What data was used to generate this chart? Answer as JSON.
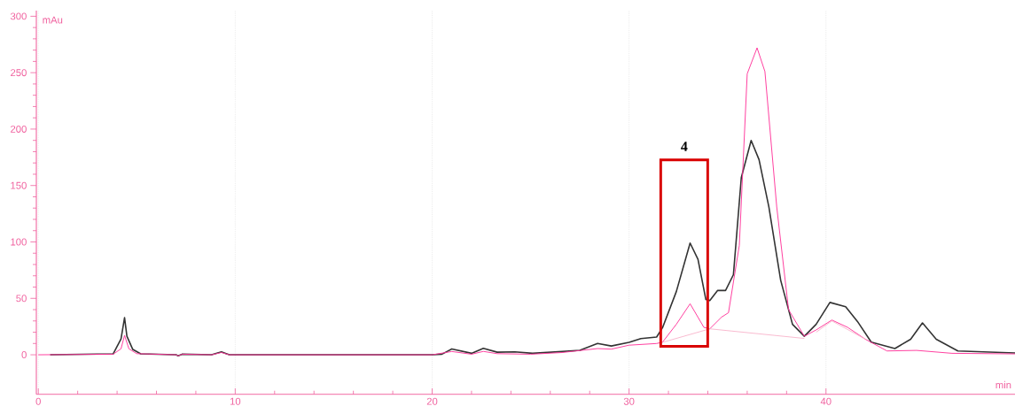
{
  "chart_data": {
    "type": "line",
    "xlabel": "min",
    "ylabel": "mAu",
    "xlim": [
      -0.1,
      49.6
    ],
    "ylim": [
      -35,
      305
    ],
    "xticks": [
      0,
      10,
      20,
      30,
      40
    ],
    "yticks": [
      0,
      50,
      100,
      150,
      200,
      250,
      300
    ],
    "grid": "x",
    "annotations": [
      "4"
    ],
    "series": [
      {
        "color": "#333333",
        "x": [
          0.6,
          3.8,
          4.2,
          4.38,
          4.5,
          4.8,
          5.2,
          7.0,
          7.1,
          7.3,
          8.8,
          9.3,
          9.7,
          20.0,
          20.5,
          21.0,
          22.0,
          22.6,
          23.3,
          24.2,
          25.1,
          26.6,
          27.5,
          28.4,
          29.1,
          30.0,
          30.6,
          31.4,
          31.7,
          32.4,
          33.1,
          33.5,
          33.9,
          34.1,
          34.5,
          34.9,
          35.3,
          35.7,
          36.2,
          36.6,
          37.1,
          37.7,
          38.3,
          38.9,
          39.5,
          40.2,
          41.0,
          41.6,
          42.3,
          43.5,
          44.3,
          44.9,
          45.6,
          46.7,
          49.6
        ],
        "values": [
          0,
          0.8,
          14,
          32.9,
          16.4,
          4.7,
          0.8,
          0,
          -1,
          0.5,
          0,
          2.6,
          0,
          0,
          0.5,
          5.2,
          1.3,
          5.7,
          2.3,
          2.6,
          1.3,
          2.9,
          3.9,
          10,
          7.8,
          11,
          14.3,
          15.7,
          24,
          56,
          99,
          84.6,
          49,
          48,
          57,
          57,
          71,
          157,
          190,
          173,
          131,
          66,
          27,
          16.4,
          27,
          46.4,
          42.5,
          29.5,
          11.2,
          5.5,
          13.8,
          28.2,
          13.8,
          3.4,
          1.6
        ]
      },
      {
        "color": "#ff3399",
        "x": [
          0,
          3.8,
          4.2,
          4.38,
          4.6,
          5.0,
          7.0,
          7.1,
          7.3,
          8.8,
          9.3,
          9.7,
          20.0,
          21.0,
          22.0,
          22.6,
          23.3,
          25.0,
          26.6,
          28.4,
          29.1,
          30.0,
          31.4,
          31.7,
          32.4,
          33.1,
          33.8,
          34.1,
          34.7,
          35.05,
          35.6,
          36.0,
          36.5,
          36.9,
          37.5,
          38.1,
          38.9,
          39.5,
          40.3,
          41.1,
          42.0,
          43.1,
          44.6,
          46.4,
          49.6
        ],
        "values": [
          0,
          0.5,
          5.3,
          17.2,
          5.3,
          1,
          0,
          -1,
          0.5,
          0,
          2,
          0,
          0,
          2.9,
          0.5,
          3,
          1,
          0.5,
          2,
          5.5,
          5,
          8.5,
          10,
          11.2,
          27,
          45.2,
          24.3,
          23,
          33.4,
          37.3,
          97,
          249,
          272,
          251,
          131,
          40,
          16.4,
          22,
          30.8,
          24.3,
          13.8,
          3.4,
          3.9,
          1.3,
          0.8
        ]
      },
      {
        "color": "#f9b6cc",
        "x": [
          31.7,
          34.1,
          38.9,
          39.0,
          39.5,
          40.3,
          42.0
        ],
        "values": [
          11,
          23,
          14.5,
          null,
          20,
          30,
          13.8
        ]
      }
    ]
  }
}
